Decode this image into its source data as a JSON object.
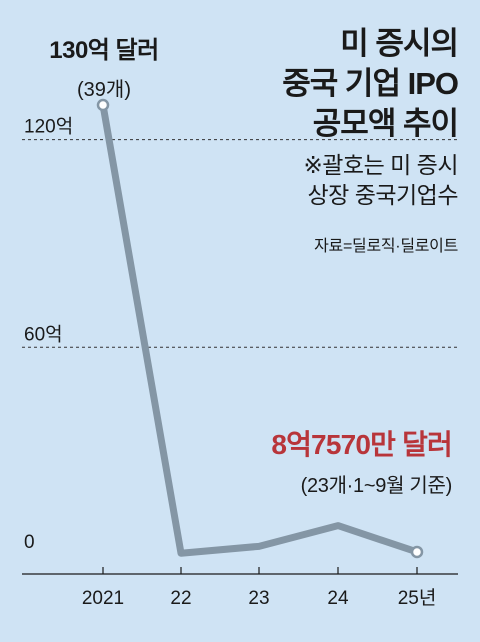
{
  "title_lines": [
    "미 증시의",
    "중국 기업 IPO",
    "공모액 추이"
  ],
  "note_lines": [
    "※괄호는 미 증시",
    "상장 중국기업수"
  ],
  "source": "자료=딜로직·딜로이트",
  "annotations": {
    "start": {
      "amount": "130억 달러",
      "count": "(39개)"
    },
    "end": {
      "amount": "8억7570만 달러",
      "count": "(23개·1~9월 기준)"
    }
  },
  "colors": {
    "background": "#cfe3f4",
    "line": "#8496a5",
    "highlight": "#b8353a"
  },
  "chart_data": {
    "type": "line",
    "categories": [
      "2021",
      "22",
      "23",
      "24",
      "25년"
    ],
    "series": [
      {
        "values": [
          130,
          0.5,
          2.5,
          8.5,
          0.8757
        ]
      }
    ],
    "yticks": [
      "0",
      "60억",
      "120억"
    ],
    "ylim": [
      0,
      130
    ],
    "grid": "dashed lines at 60억 and 120억",
    "markers": "hollow circles at first and last point"
  }
}
